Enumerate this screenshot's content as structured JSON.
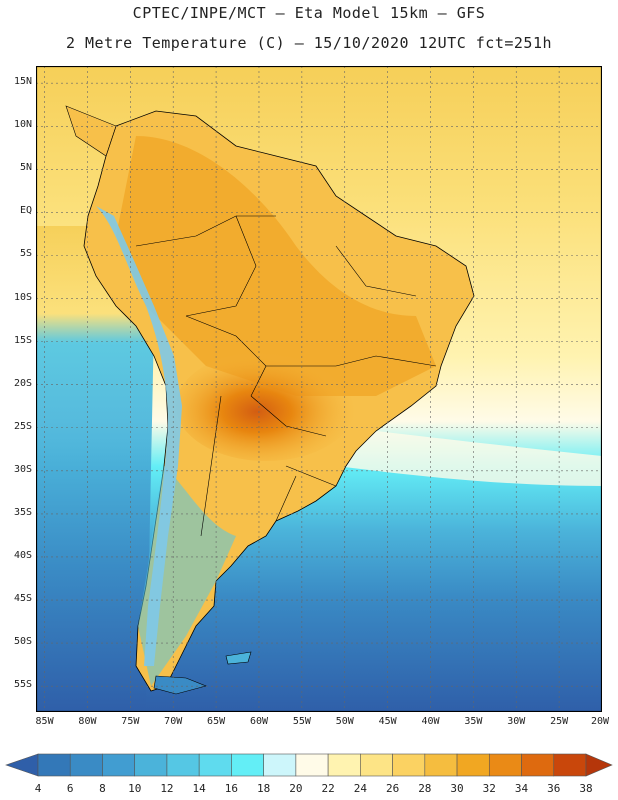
{
  "header": {
    "line1": "CPTEC/INPE/MCT –  Eta Model 15km – GFS",
    "line2": "2 Metre Temperature (C) – 15/10/2020 12UTC fct=251h"
  },
  "axes": {
    "lat_labels": [
      "15N",
      "10N",
      "5N",
      "EQ",
      "5S",
      "10S",
      "15S",
      "20S",
      "25S",
      "30S",
      "35S",
      "40S",
      "45S",
      "50S",
      "55S"
    ],
    "lat_values": [
      15,
      10,
      5,
      0,
      -5,
      -10,
      -15,
      -20,
      -25,
      -30,
      -35,
      -40,
      -45,
      -50,
      -55
    ],
    "lon_labels": [
      "85W",
      "80W",
      "75W",
      "70W",
      "65W",
      "60W",
      "55W",
      "50W",
      "45W",
      "40W",
      "35W",
      "30W",
      "25W",
      "20W"
    ],
    "lon_values": [
      -85,
      -80,
      -75,
      -70,
      -65,
      -60,
      -55,
      -50,
      -45,
      -40,
      -35,
      -30,
      -25,
      -20
    ],
    "lat_range": [
      -58,
      17
    ],
    "lon_range": [
      -86,
      -20
    ]
  },
  "colors": {
    "ocean_tropical": "#fbe07a",
    "ocean_warm": "#fff3b0",
    "ocean_mid": "#63eef6",
    "ocean_cool": "#3aa6cf",
    "ocean_cold": "#2f5fa9",
    "land_hot": "#ef9b17",
    "land_warm": "#f7c04a",
    "land_peak": "#d35d12",
    "andes": "#7ec9e8",
    "border": "#000000",
    "grid": "#666666"
  },
  "legend": {
    "labels": [
      "4",
      "6",
      "8",
      "10",
      "12",
      "14",
      "16",
      "18",
      "20",
      "22",
      "24",
      "26",
      "28",
      "30",
      "32",
      "34",
      "36",
      "38"
    ],
    "colors": [
      "#2f5fa9",
      "#3378b8",
      "#3a8bc5",
      "#419dd1",
      "#4bb3da",
      "#55c7e4",
      "#5fdbee",
      "#63eef6",
      "#cdf6fb",
      "#fffbe8",
      "#fff3b0",
      "#fde486",
      "#fbd262",
      "#f5bd3f",
      "#f1a722",
      "#ea8a16",
      "#de6a0f",
      "#c9470b",
      "#b5360a"
    ]
  }
}
